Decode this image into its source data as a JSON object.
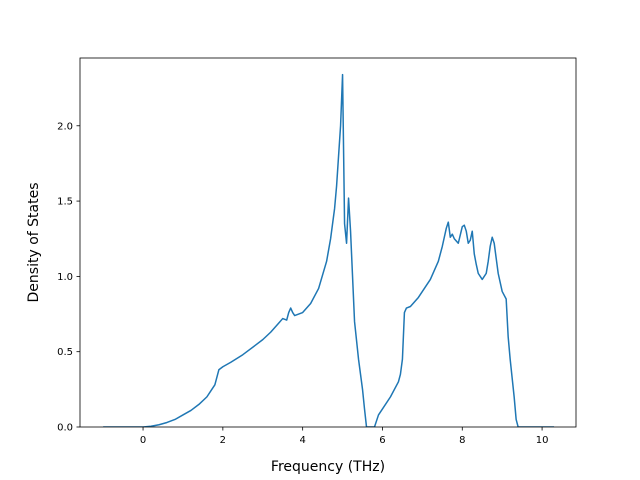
{
  "chart_data": {
    "type": "line",
    "title": "",
    "xlabel": "Frequency (THz)",
    "ylabel": "Density of States",
    "xlim": [
      -1.58,
      10.85
    ],
    "ylim": [
      0,
      2.45
    ],
    "xticks": [
      0,
      2,
      4,
      6,
      8,
      10
    ],
    "xtick_labels": [
      "0",
      "2",
      "4",
      "6",
      "8",
      "10"
    ],
    "yticks": [
      0.0,
      0.5,
      1.0,
      1.5,
      2.0
    ],
    "ytick_labels": [
      "0.0",
      "0.5",
      "1.0",
      "1.5",
      "2.0"
    ],
    "grid": false,
    "series": [
      {
        "color": "#1f77b4",
        "x": [
          -1.0,
          -0.5,
          0.0,
          0.2,
          0.4,
          0.6,
          0.8,
          1.0,
          1.2,
          1.4,
          1.6,
          1.7,
          1.8,
          1.85,
          1.9,
          2.0,
          2.2,
          2.5,
          2.8,
          3.0,
          3.2,
          3.4,
          3.5,
          3.6,
          3.65,
          3.7,
          3.75,
          3.8,
          4.0,
          4.2,
          4.4,
          4.6,
          4.7,
          4.8,
          4.85,
          4.9,
          4.95,
          5.0,
          5.05,
          5.1,
          5.15,
          5.2,
          5.3,
          5.4,
          5.5,
          5.55,
          5.6,
          5.7,
          5.8,
          5.9,
          6.0,
          6.2,
          6.4,
          6.45,
          6.5,
          6.55,
          6.6,
          6.7,
          6.8,
          6.9,
          7.0,
          7.2,
          7.4,
          7.5,
          7.6,
          7.65,
          7.7,
          7.75,
          7.8,
          7.9,
          8.0,
          8.05,
          8.1,
          8.15,
          8.2,
          8.25,
          8.3,
          8.35,
          8.4,
          8.5,
          8.6,
          8.65,
          8.7,
          8.75,
          8.8,
          8.85,
          8.9,
          9.0,
          9.1,
          9.15,
          9.2,
          9.3,
          9.35,
          9.4,
          9.6,
          10.0,
          10.3
        ],
        "values": [
          0.0,
          0.0,
          0.0,
          0.005,
          0.015,
          0.03,
          0.05,
          0.08,
          0.11,
          0.15,
          0.2,
          0.24,
          0.28,
          0.33,
          0.38,
          0.4,
          0.43,
          0.48,
          0.54,
          0.58,
          0.63,
          0.69,
          0.72,
          0.71,
          0.76,
          0.79,
          0.76,
          0.74,
          0.76,
          0.82,
          0.92,
          1.1,
          1.25,
          1.45,
          1.6,
          1.8,
          2.0,
          2.34,
          1.35,
          1.22,
          1.52,
          1.3,
          0.7,
          0.45,
          0.25,
          0.12,
          0.0,
          0.0,
          0.0,
          0.08,
          0.12,
          0.2,
          0.3,
          0.35,
          0.45,
          0.76,
          0.79,
          0.8,
          0.83,
          0.86,
          0.9,
          0.98,
          1.1,
          1.2,
          1.32,
          1.36,
          1.26,
          1.28,
          1.25,
          1.22,
          1.33,
          1.34,
          1.3,
          1.22,
          1.24,
          1.3,
          1.15,
          1.08,
          1.02,
          0.98,
          1.02,
          1.1,
          1.2,
          1.26,
          1.22,
          1.12,
          1.02,
          0.9,
          0.85,
          0.6,
          0.45,
          0.2,
          0.05,
          0.0,
          0.0,
          0.0,
          0.0
        ]
      }
    ]
  }
}
